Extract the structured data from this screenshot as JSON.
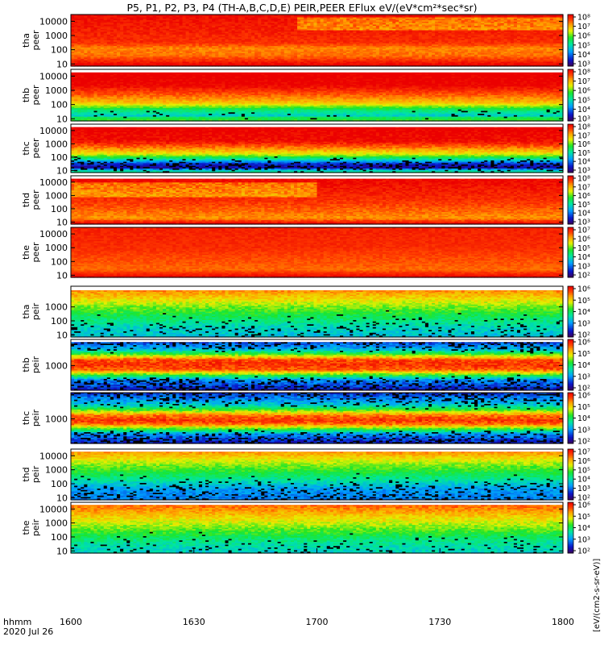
{
  "chart_data": {
    "type": "heatmap",
    "title": "P5, P1, P2, P3, P4 (TH-A,B,C,D,E) PEIR,PEER EFlux eV/(eV*cm²*sec*sr)",
    "x_axis": {
      "ticks": [
        "1600",
        "1630",
        "1700",
        "1730",
        "1800"
      ],
      "time_label": "hhmm",
      "date_label": "2020 Jul 26"
    },
    "colorbar_title": "[eV/(cm2-s-sr-eV)]",
    "panels": [
      {
        "id": "tha-peer",
        "label": [
          "tha",
          "peer"
        ],
        "yticks": [
          "10000",
          "1000",
          "100",
          "10"
        ],
        "yscale": "log",
        "ylim": [
          7,
          30000
        ],
        "colorbar_ticks": [
          "10⁸",
          "10⁷",
          "10⁶",
          "10⁵",
          "10⁴",
          "10³"
        ],
        "colorbar_range": [
          3,
          8.3
        ],
        "profile": [
          [
            0,
            8.2
          ],
          [
            0.55,
            7.9
          ],
          [
            0.65,
            7.4
          ],
          [
            0.8,
            7.5
          ],
          [
            1,
            8.4
          ]
        ],
        "events": [
          {
            "t0": 0.46,
            "t1": 1.0,
            "y0": 0.05,
            "y1": 0.3,
            "delta": -0.9
          }
        ],
        "noise": 0.18,
        "speck": 0
      },
      {
        "id": "thb-peer",
        "label": [
          "thb",
          "peer"
        ],
        "yticks": [
          "10000",
          "1000",
          "100",
          "10"
        ],
        "yscale": "log",
        "ylim": [
          7,
          30000
        ],
        "colorbar_ticks": [
          "10⁸",
          "10⁷",
          "10⁶",
          "10⁵",
          "10⁴",
          "10³"
        ],
        "colorbar_range": [
          3,
          8.3
        ],
        "profile": [
          [
            0,
            8.4
          ],
          [
            0.3,
            8.3
          ],
          [
            0.5,
            7.6
          ],
          [
            0.65,
            7.0
          ],
          [
            0.78,
            5.6
          ],
          [
            0.9,
            4.9
          ],
          [
            0.93,
            5.6
          ],
          [
            1,
            6.0
          ]
        ],
        "events": [],
        "noise": 0.2,
        "speck": 0.22,
        "gap_top": 0.06
      },
      {
        "id": "thc-peer",
        "label": [
          "thc",
          "peer"
        ],
        "yticks": [
          "10000",
          "1000",
          "100",
          "10"
        ],
        "yscale": "log",
        "ylim": [
          7,
          30000
        ],
        "colorbar_ticks": [
          "10⁸",
          "10⁷",
          "10⁶",
          "10⁵",
          "10⁴",
          "10³"
        ],
        "colorbar_range": [
          3,
          8.3
        ],
        "profile": [
          [
            0,
            8.4
          ],
          [
            0.35,
            8.2
          ],
          [
            0.5,
            7.4
          ],
          [
            0.62,
            6.6
          ],
          [
            0.72,
            5.3
          ],
          [
            0.82,
            3.8
          ],
          [
            0.9,
            3.4
          ],
          [
            0.95,
            4.8
          ],
          [
            1,
            5.5
          ]
        ],
        "events": [],
        "noise": 0.25,
        "speck": 0.3,
        "gap_top": 0.06
      },
      {
        "id": "thd-peer",
        "label": [
          "thd",
          "peer"
        ],
        "yticks": [
          "10000",
          "1000",
          "100",
          "10"
        ],
        "yscale": "log",
        "ylim": [
          7,
          30000
        ],
        "colorbar_ticks": [
          "10⁸",
          "10⁷",
          "10⁶",
          "10⁵",
          "10⁴",
          "10³"
        ],
        "colorbar_range": [
          3,
          8.3
        ],
        "profile": [
          [
            0,
            8.3
          ],
          [
            0.5,
            7.9
          ],
          [
            0.7,
            7.6
          ],
          [
            0.88,
            7.3
          ],
          [
            1,
            8.4
          ]
        ],
        "events": [
          {
            "t0": 0.0,
            "t1": 0.5,
            "y0": 0.15,
            "y1": 0.45,
            "delta": -0.9
          }
        ],
        "noise": 0.2,
        "speck": 0,
        "gap_top": 0.06
      },
      {
        "id": "the-peer",
        "label": [
          "the",
          "peer"
        ],
        "yticks": [
          "10000",
          "1000",
          "100",
          "10"
        ],
        "yscale": "log",
        "ylim": [
          7,
          30000
        ],
        "colorbar_ticks": [
          "10⁷",
          "10⁶",
          "10⁵",
          "10⁴",
          "10³",
          "10²"
        ],
        "colorbar_range": [
          2,
          7.6
        ],
        "profile": [
          [
            0,
            7.3
          ],
          [
            0.4,
            7.2
          ],
          [
            0.6,
            7.0
          ],
          [
            0.85,
            6.8
          ],
          [
            1,
            7.6
          ]
        ],
        "events": [],
        "noise": 0.15,
        "speck": 0
      },
      {
        "id": "tha-peir",
        "label": [
          "tha",
          "peir"
        ],
        "yticks": [
          "1000",
          "100",
          "10"
        ],
        "yscale": "log",
        "ylim": [
          7,
          30000
        ],
        "colorbar_ticks": [
          "10⁶",
          "10⁵",
          "10⁴",
          "10³",
          "10²"
        ],
        "colorbar_range": [
          1.6,
          7
        ],
        "profile": [
          [
            0,
            6.4
          ],
          [
            0.12,
            5.9
          ],
          [
            0.22,
            5.6
          ],
          [
            0.4,
            4.9
          ],
          [
            0.6,
            4.3
          ],
          [
            0.8,
            3.7
          ],
          [
            1,
            3.4
          ]
        ],
        "events": [],
        "noise": 0.3,
        "speck": 0.35,
        "gap_top": 0.08
      },
      {
        "id": "thb-peir",
        "label": [
          "thb",
          "peir"
        ],
        "yticks": [
          "1000"
        ],
        "yscale": "log",
        "ylim": [
          40,
          30000
        ],
        "colorbar_ticks": [
          "10⁶",
          "10⁵",
          "10⁴",
          "10³",
          "10²"
        ],
        "colorbar_range": [
          1.6,
          7
        ],
        "profile": [
          [
            0,
            2.2
          ],
          [
            0.2,
            3.4
          ],
          [
            0.3,
            4.8
          ],
          [
            0.4,
            6.4
          ],
          [
            0.5,
            6.6
          ],
          [
            0.6,
            6.3
          ],
          [
            0.7,
            4.6
          ],
          [
            0.8,
            3.0
          ],
          [
            1,
            2.2
          ]
        ],
        "events": [],
        "noise": 0.35,
        "speck": 0.35,
        "gap_top": 0.05
      },
      {
        "id": "thc-peir",
        "label": [
          "thc",
          "peir"
        ],
        "yticks": [
          "1000"
        ],
        "yscale": "log",
        "ylim": [
          40,
          30000
        ],
        "colorbar_ticks": [
          "10⁶",
          "10⁵",
          "10⁴",
          "10³",
          "10²"
        ],
        "colorbar_range": [
          1.6,
          7
        ],
        "profile": [
          [
            0,
            2.4
          ],
          [
            0.25,
            3.6
          ],
          [
            0.35,
            4.8
          ],
          [
            0.45,
            6.2
          ],
          [
            0.55,
            6.6
          ],
          [
            0.62,
            6.2
          ],
          [
            0.72,
            4.6
          ],
          [
            0.82,
            3.0
          ],
          [
            1,
            2.2
          ]
        ],
        "events": [],
        "noise": 0.35,
        "speck": 0.35
      },
      {
        "id": "thd-peir",
        "label": [
          "thd",
          "peir"
        ],
        "yticks": [
          "10000",
          "1000",
          "100",
          "10"
        ],
        "yscale": "log",
        "ylim": [
          7,
          30000
        ],
        "colorbar_ticks": [
          "10⁷",
          "10⁶",
          "10⁵",
          "10⁴",
          "10³",
          "10²"
        ],
        "colorbar_range": [
          1.8,
          7.6
        ],
        "profile": [
          [
            0,
            6.8
          ],
          [
            0.15,
            6.1
          ],
          [
            0.3,
            5.4
          ],
          [
            0.45,
            4.9
          ],
          [
            0.6,
            4.3
          ],
          [
            0.8,
            3.4
          ],
          [
            1,
            3.2
          ]
        ],
        "events": [],
        "noise": 0.3,
        "speck": 0.35,
        "gap_top": 0.05
      },
      {
        "id": "the-peir",
        "label": [
          "the",
          "peir"
        ],
        "yticks": [
          "10000",
          "1000",
          "100",
          "10"
        ],
        "yscale": "log",
        "ylim": [
          7,
          30000
        ],
        "colorbar_ticks": [
          "10⁶",
          "10⁵",
          "10⁴",
          "10³",
          "10²"
        ],
        "colorbar_range": [
          1.6,
          7
        ],
        "profile": [
          [
            0,
            6.4
          ],
          [
            0.15,
            6.0
          ],
          [
            0.3,
            5.5
          ],
          [
            0.5,
            4.9
          ],
          [
            0.65,
            4.4
          ],
          [
            0.8,
            3.9
          ],
          [
            1,
            3.6
          ]
        ],
        "events": [],
        "noise": 0.3,
        "speck": 0.3,
        "gap_top": 0.05
      }
    ]
  }
}
